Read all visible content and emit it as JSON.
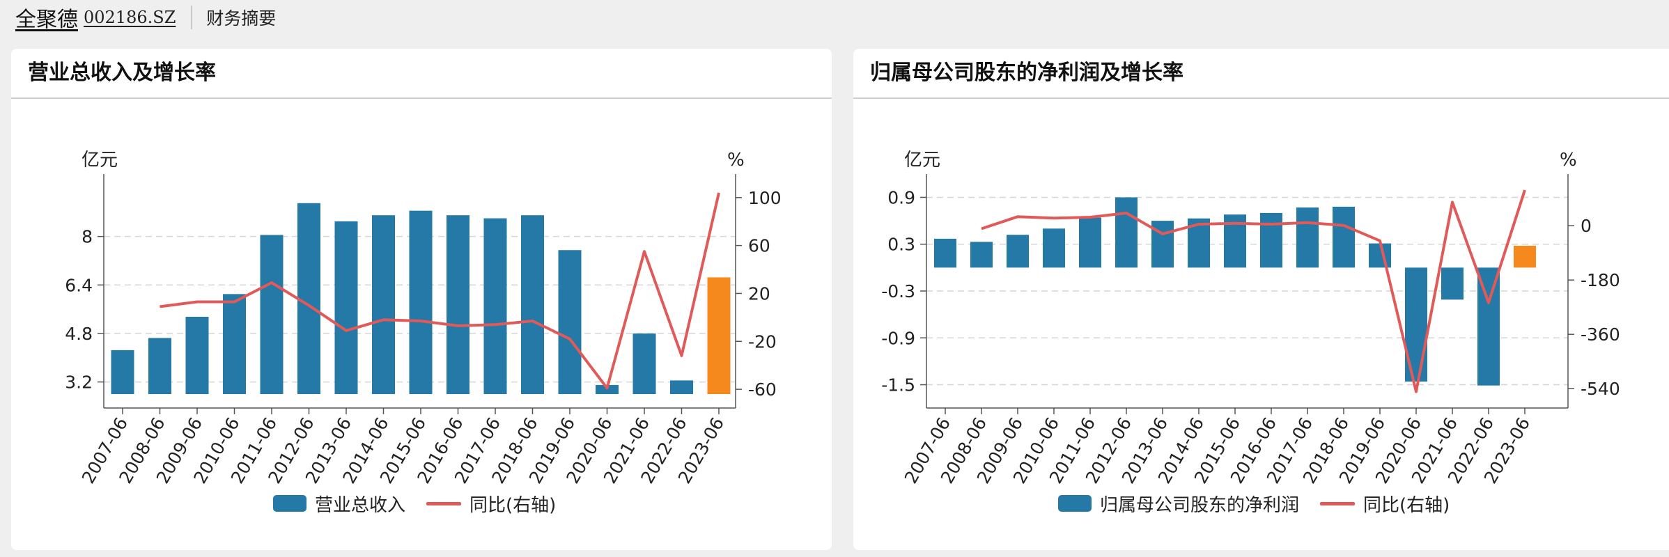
{
  "header": {
    "company_name": "全聚德",
    "company_code": "002186.SZ",
    "section": "财务摘要"
  },
  "colors": {
    "bar": "#2479a7",
    "bar_highlight": "#f5891d",
    "line": "#e05a5a",
    "grid": "#d6d6d6",
    "axis": "#555555"
  },
  "chart_data": [
    {
      "type": "bar",
      "title": "营业总收入及增长率",
      "ylabel": "亿元",
      "y2label": "%",
      "categories": [
        "2007-06",
        "2008-06",
        "2009-06",
        "2010-06",
        "2011-06",
        "2012-06",
        "2013-06",
        "2014-06",
        "2015-06",
        "2016-06",
        "2017-06",
        "2018-06",
        "2019-06",
        "2020-06",
        "2021-06",
        "2022-06",
        "2023-06"
      ],
      "ylim": [
        2.8,
        9.6
      ],
      "yticks": [
        "3.2",
        "4.8",
        "6.4",
        "8"
      ],
      "y2lim": [
        -64,
        108
      ],
      "y2ticks": [
        "-60",
        "-20",
        "20",
        "60",
        "100"
      ],
      "grid": true,
      "legend_position": "bottom",
      "series": [
        {
          "name": "营业总收入",
          "kind": "bar",
          "values": [
            4.25,
            4.65,
            5.35,
            6.1,
            8.05,
            9.1,
            8.5,
            8.7,
            8.85,
            8.7,
            8.6,
            8.7,
            7.55,
            3.1,
            4.8,
            3.25,
            6.65
          ],
          "highlight_index": 16
        },
        {
          "name": "同比(右轴)",
          "kind": "line",
          "axis": "right",
          "values": [
            null,
            9,
            13,
            13,
            29,
            10,
            -11,
            -2,
            -3,
            -7,
            -6,
            -3,
            -18,
            -59,
            55,
            -32,
            104
          ]
        }
      ]
    },
    {
      "type": "bar",
      "title": "归属母公司股东的净利润及增长率",
      "ylabel": "亿元",
      "y2label": "%",
      "categories": [
        "2007-06",
        "2008-06",
        "2009-06",
        "2010-06",
        "2011-06",
        "2012-06",
        "2013-06",
        "2014-06",
        "2015-06",
        "2016-06",
        "2017-06",
        "2018-06",
        "2019-06",
        "2020-06",
        "2021-06",
        "2022-06",
        "2023-06"
      ],
      "ylim": [
        -1.62,
        1.02
      ],
      "yticks": [
        "-1.5",
        "-0.9",
        "-0.3",
        "0.3",
        "0.9"
      ],
      "y2lim": [
        -558,
        125
      ],
      "y2ticks": [
        "-540",
        "-360",
        "-180",
        "0"
      ],
      "grid": true,
      "legend_position": "bottom",
      "series": [
        {
          "name": "归属母公司股东的净利润",
          "kind": "bar",
          "values": [
            0.37,
            0.33,
            0.42,
            0.5,
            0.64,
            0.9,
            0.6,
            0.63,
            0.68,
            0.7,
            0.77,
            0.78,
            0.31,
            -1.46,
            -0.41,
            -1.51,
            0.28
          ],
          "highlight_index": 16
        },
        {
          "name": "同比(右轴)",
          "kind": "line",
          "axis": "right",
          "values": [
            null,
            -10,
            30,
            25,
            28,
            42,
            -27,
            5,
            8,
            5,
            10,
            1,
            -50,
            -550,
            78,
            -255,
            118
          ]
        }
      ]
    }
  ]
}
